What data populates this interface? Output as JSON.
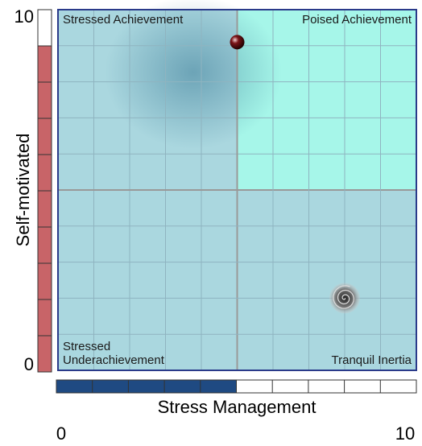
{
  "chart_data": {
    "type": "quadrant",
    "xlabel": "Stress Management",
    "ylabel": "Self-motivated",
    "xlim": [
      0,
      10
    ],
    "ylim": [
      0,
      10
    ],
    "xticks": [
      0,
      10
    ],
    "yticks": [
      0,
      10
    ],
    "quadrants": {
      "top_left": "Stressed Achievement",
      "top_right": "Poised Achievement",
      "bottom_left": "Stressed Underachievement",
      "bottom_right": "Tranquil Inertia"
    },
    "quadrant_colors": {
      "top_left": "#aad7df",
      "top_right": "#a6f6e9",
      "bottom_left": "#aad7df",
      "bottom_right": "#aad7df"
    },
    "points": [
      {
        "x": 5,
        "y": 9.1,
        "marker": "marble",
        "color": "#7a1418"
      },
      {
        "x": 8,
        "y": 2,
        "marker": "swirl",
        "color": "#555555"
      }
    ],
    "x_gauge": {
      "value": 5,
      "color": "#1f4a82"
    },
    "y_gauge": {
      "value": 9,
      "color": "#c86468"
    }
  }
}
